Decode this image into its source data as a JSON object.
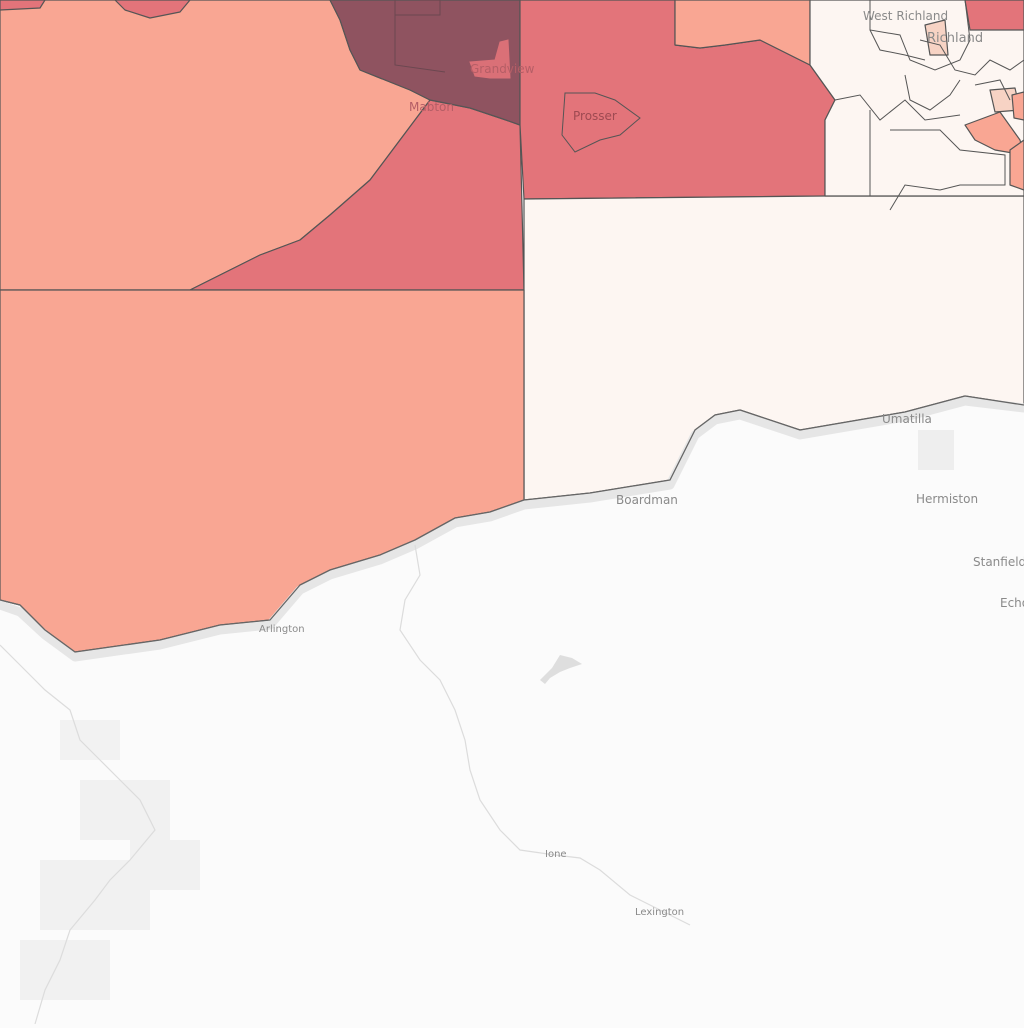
{
  "map": {
    "colors": {
      "land": "#fbfbfb",
      "river": "#e4e4e4",
      "choropleth_lowest": "#fdf6f2",
      "choropleth_low": "#f7d3c4",
      "choropleth_mid": "#f9a693",
      "choropleth_high": "#e3747a",
      "choropleth_highest": "#8f5360",
      "boundary": "#555555",
      "label_dark": "#777777",
      "label_light": "#8a8a8a"
    },
    "place_labels": {
      "west_richland": "West Richland",
      "richland": "Richland",
      "grandview": "Grandview",
      "mabton": "Mabton",
      "prosser": "Prosser",
      "umatilla": "Umatilla",
      "boardman": "Boardman",
      "hermiston": "Hermiston",
      "stanfield": "Stanfield",
      "echo": "Echo",
      "arlington": "Arlington",
      "ione": "Ione",
      "lexington": "Lexington"
    }
  }
}
